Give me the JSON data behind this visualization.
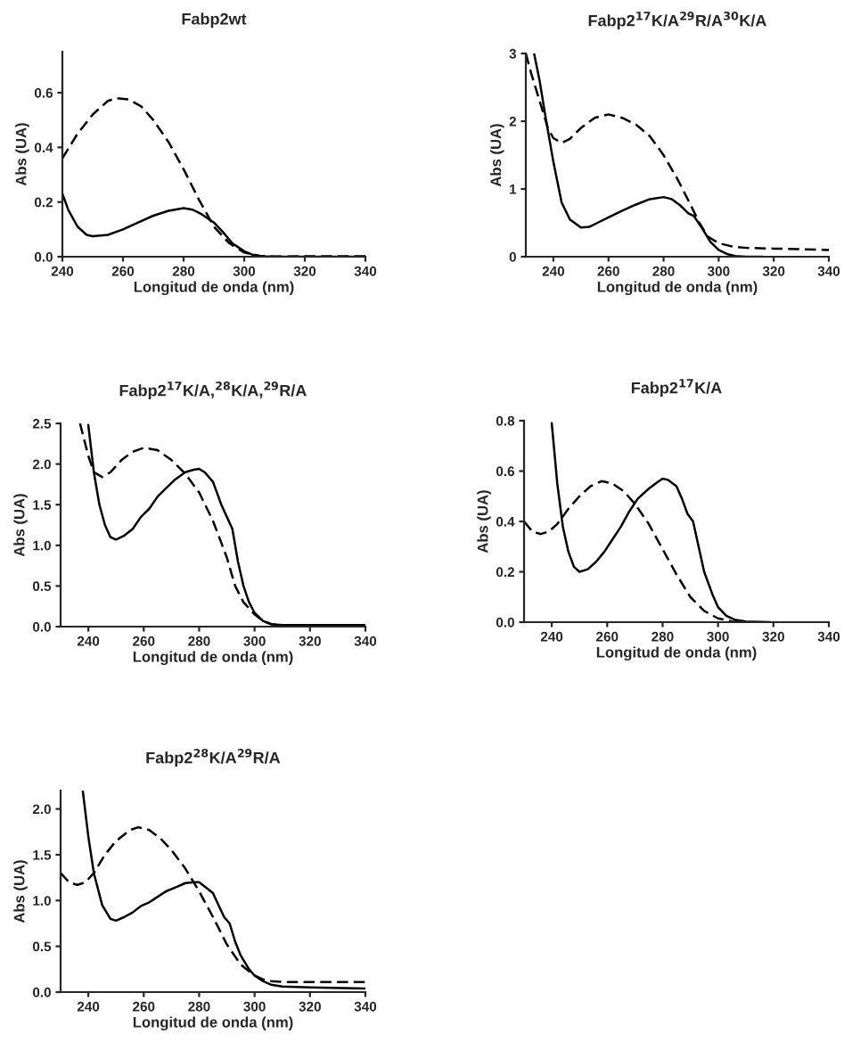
{
  "chart_data": [
    {
      "type": "line",
      "title": "Fabp2wt",
      "xlabel": "Longitud de onda (nm)",
      "ylabel": "Abs (UA)",
      "xlim": [
        240,
        340
      ],
      "ylim": [
        0,
        0.75
      ],
      "xticks": [
        240,
        260,
        280,
        300,
        320,
        340
      ],
      "yticks": [
        {
          "value": 0,
          "label": "0.0"
        },
        0.2,
        0.4,
        0.6
      ],
      "grid": false,
      "legend": false,
      "series": [
        {
          "color": "#000000",
          "line_style": "solid",
          "x": [
            240,
            242,
            245,
            248,
            250,
            255,
            260,
            265,
            270,
            275,
            280,
            283,
            286,
            290,
            293,
            296,
            300,
            303,
            306,
            310,
            340
          ],
          "values": [
            0.23,
            0.17,
            0.11,
            0.08,
            0.075,
            0.08,
            0.1,
            0.125,
            0.15,
            0.168,
            0.178,
            0.172,
            0.155,
            0.125,
            0.09,
            0.05,
            0.02,
            0.006,
            0.002,
            0,
            0
          ]
        },
        {
          "color": "#000000",
          "line_style": "dashed",
          "x": [
            240,
            245,
            250,
            255,
            258,
            262,
            266,
            270,
            275,
            280,
            285,
            290,
            295,
            300,
            305,
            310,
            340
          ],
          "values": [
            0.36,
            0.45,
            0.52,
            0.57,
            0.58,
            0.575,
            0.55,
            0.5,
            0.42,
            0.32,
            0.21,
            0.11,
            0.05,
            0.015,
            0.003,
            0.001,
            0.002
          ]
        }
      ]
    },
    {
      "type": "line",
      "title": "Fabp2$^{17}$K/A$^{29}$R/A$^{30}$K/A",
      "xlabel": "Longitud de onda (nm)",
      "ylabel": "Abs (UA)",
      "xlim": [
        230,
        340
      ],
      "ylim": [
        0,
        3
      ],
      "xticks": [
        240,
        260,
        280,
        300,
        320,
        340
      ],
      "yticks": [
        0,
        1,
        2,
        3
      ],
      "grid": false,
      "legend": false,
      "series": [
        {
          "color": "#000000",
          "line_style": "solid",
          "x": [
            233,
            235,
            237,
            240,
            243,
            246,
            250,
            253,
            256,
            260,
            265,
            270,
            275,
            280,
            283,
            286,
            289,
            291,
            294,
            297,
            300,
            303,
            306,
            310,
            316
          ],
          "values": [
            3.0,
            2.6,
            2.1,
            1.4,
            0.8,
            0.55,
            0.43,
            0.44,
            0.5,
            0.58,
            0.68,
            0.77,
            0.85,
            0.88,
            0.85,
            0.76,
            0.64,
            0.6,
            0.42,
            0.22,
            0.1,
            0.04,
            0.01,
            0,
            0
          ]
        },
        {
          "color": "#000000",
          "line_style": "dashed",
          "x": [
            230,
            232,
            235,
            238,
            240,
            243,
            246,
            250,
            255,
            260,
            265,
            270,
            275,
            280,
            285,
            290,
            293,
            296,
            300,
            305,
            310,
            320,
            330,
            340
          ],
          "values": [
            3.0,
            2.7,
            2.3,
            1.9,
            1.75,
            1.68,
            1.74,
            1.9,
            2.05,
            2.1,
            2.05,
            1.95,
            1.78,
            1.5,
            1.15,
            0.75,
            0.5,
            0.3,
            0.2,
            0.15,
            0.13,
            0.12,
            0.11,
            0.1
          ]
        }
      ]
    },
    {
      "type": "line",
      "title": "Fabp2$^{17}$K/A,$^{28}$K/A,$^{29}$R/A",
      "xlabel": "Longitud de onda (nm)",
      "ylabel": "Abs (UA)",
      "xlim": [
        230,
        340
      ],
      "ylim": [
        0,
        2.5
      ],
      "xticks": [
        240,
        260,
        280,
        300,
        320,
        340
      ],
      "yticks": [
        {
          "value": 0,
          "label": "0.0"
        },
        0.5,
        {
          "value": 1,
          "label": "1.0"
        },
        1.5,
        {
          "value": 2,
          "label": "2.0"
        },
        2.5
      ],
      "grid": false,
      "legend": false,
      "series": [
        {
          "color": "#000000",
          "line_style": "solid",
          "x": [
            240,
            242,
            244,
            246,
            248,
            250,
            253,
            256,
            259,
            262,
            265,
            268,
            271,
            275,
            278,
            280,
            282,
            285,
            288,
            290,
            292,
            294,
            296,
            298,
            300,
            303,
            306,
            310,
            340
          ],
          "values": [
            2.48,
            1.9,
            1.5,
            1.25,
            1.1,
            1.07,
            1.12,
            1.2,
            1.35,
            1.45,
            1.6,
            1.7,
            1.8,
            1.9,
            1.93,
            1.94,
            1.9,
            1.78,
            1.5,
            1.35,
            1.2,
            0.8,
            0.5,
            0.3,
            0.17,
            0.07,
            0.03,
            0.02,
            0.02
          ]
        },
        {
          "color": "#000000",
          "line_style": "dashed",
          "x": [
            237,
            240,
            242,
            245,
            248,
            252,
            256,
            260,
            265,
            270,
            275,
            280,
            285,
            290,
            293,
            296,
            300,
            303,
            306,
            310,
            340
          ],
          "values": [
            2.5,
            2.1,
            1.9,
            1.84,
            1.9,
            2.05,
            2.15,
            2.2,
            2.17,
            2.05,
            1.88,
            1.65,
            1.3,
            0.85,
            0.5,
            0.3,
            0.15,
            0.07,
            0.03,
            0.02,
            0.02
          ]
        }
      ]
    },
    {
      "type": "line",
      "title": "Fabp2$^{17}$K/A",
      "xlabel": "Longitud de onda (nm)",
      "ylabel": "Abs (UA)",
      "xlim": [
        230,
        340
      ],
      "ylim": [
        0,
        0.8
      ],
      "xticks": [
        240,
        260,
        280,
        300,
        320,
        340
      ],
      "yticks": [
        {
          "value": 0,
          "label": "0.0"
        },
        0.2,
        0.4,
        0.6,
        0.8
      ],
      "grid": false,
      "legend": false,
      "series": [
        {
          "color": "#000000",
          "line_style": "solid",
          "x": [
            240,
            242,
            244,
            246,
            248,
            250,
            253,
            256,
            259,
            262,
            265,
            268,
            271,
            275,
            278,
            280,
            282,
            285,
            287,
            289,
            291,
            293,
            295,
            298,
            300,
            303,
            306,
            310,
            319
          ],
          "values": [
            0.79,
            0.55,
            0.38,
            0.28,
            0.22,
            0.2,
            0.21,
            0.24,
            0.28,
            0.33,
            0.38,
            0.44,
            0.49,
            0.53,
            0.555,
            0.57,
            0.565,
            0.54,
            0.49,
            0.43,
            0.4,
            0.3,
            0.2,
            0.11,
            0.06,
            0.025,
            0.01,
            0.003,
            0
          ]
        },
        {
          "color": "#000000",
          "line_style": "dashed",
          "x": [
            230,
            233,
            236,
            239,
            242,
            246,
            250,
            254,
            258,
            262,
            266,
            270,
            275,
            280,
            285,
            290,
            295,
            300,
            305,
            310
          ],
          "values": [
            0.4,
            0.36,
            0.35,
            0.36,
            0.39,
            0.45,
            0.5,
            0.54,
            0.56,
            0.55,
            0.52,
            0.47,
            0.39,
            0.29,
            0.19,
            0.1,
            0.045,
            0.015,
            0.003,
            0
          ]
        }
      ]
    },
    {
      "type": "line",
      "title": "Fabp2$^{28}$K/A$^{29}$R/A",
      "xlabel": "Longitud de onda (nm)",
      "ylabel": "Abs (UA)",
      "xlim": [
        230,
        340
      ],
      "ylim": [
        0,
        2.2
      ],
      "xticks": [
        240,
        260,
        280,
        300,
        320,
        340
      ],
      "yticks": [
        {
          "value": 0,
          "label": "0.0"
        },
        0.5,
        {
          "value": 1,
          "label": "1.0"
        },
        1.5,
        {
          "value": 2,
          "label": "2.0"
        }
      ],
      "grid": false,
      "legend": false,
      "series": [
        {
          "color": "#000000",
          "line_style": "solid",
          "x": [
            238,
            240,
            242,
            245,
            248,
            250,
            253,
            256,
            259,
            262,
            265,
            268,
            272,
            275,
            278,
            280,
            283,
            285,
            287,
            289,
            291,
            293,
            295,
            298,
            300,
            303,
            306,
            310,
            320,
            340
          ],
          "values": [
            2.2,
            1.7,
            1.3,
            0.95,
            0.8,
            0.78,
            0.82,
            0.87,
            0.94,
            0.98,
            1.04,
            1.1,
            1.15,
            1.19,
            1.2,
            1.2,
            1.13,
            1.08,
            0.95,
            0.82,
            0.75,
            0.55,
            0.4,
            0.25,
            0.18,
            0.12,
            0.08,
            0.06,
            0.05,
            0.04
          ]
        },
        {
          "color": "#000000",
          "line_style": "dashed",
          "x": [
            230,
            233,
            236,
            239,
            242,
            246,
            250,
            255,
            258,
            262,
            266,
            270,
            275,
            280,
            285,
            290,
            295,
            300,
            303,
            306,
            310,
            340
          ],
          "values": [
            1.3,
            1.2,
            1.17,
            1.2,
            1.3,
            1.5,
            1.65,
            1.77,
            1.8,
            1.77,
            1.68,
            1.55,
            1.35,
            1.1,
            0.82,
            0.52,
            0.3,
            0.18,
            0.14,
            0.12,
            0.11,
            0.11
          ]
        }
      ]
    }
  ]
}
